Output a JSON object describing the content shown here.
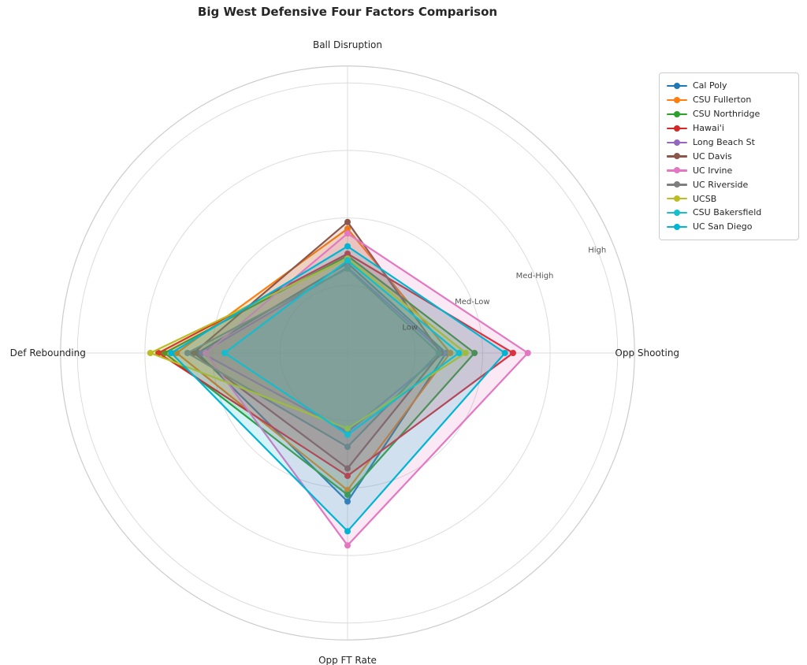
{
  "title": "Big West Defensive Four Factors Comparison",
  "chart_data": {
    "type": "radar",
    "title": "Big West Defensive Four Factors Comparison",
    "categories": [
      "Ball Disruption",
      "Opp Shooting",
      "Opp FT Rate",
      "Def Rebounding"
    ],
    "axis_angles_deg": [
      90,
      0,
      270,
      180
    ],
    "radial_ticks": [
      {
        "value": 1,
        "label": "Low"
      },
      {
        "value": 2,
        "label": "Med-Low"
      },
      {
        "value": 3,
        "label": "Med-High"
      },
      {
        "value": 4,
        "label": "High"
      }
    ],
    "r_max": 4.25,
    "tick_label_angle_deg": 22.5,
    "grid": true,
    "legend_position": "upper right",
    "series": [
      {
        "name": "Cal Poly",
        "color": "#1f77b4",
        "values": [
          1.33,
          1.46,
          2.2,
          2.22
        ]
      },
      {
        "name": "CSU Fullerton",
        "color": "#ff7f0e",
        "values": [
          1.84,
          1.52,
          2.03,
          2.53
        ]
      },
      {
        "name": "CSU Northridge",
        "color": "#2ca02c",
        "values": [
          1.44,
          1.88,
          2.1,
          2.71
        ]
      },
      {
        "name": "Hawai'i",
        "color": "#d62728",
        "values": [
          1.47,
          2.45,
          1.82,
          2.8
        ]
      },
      {
        "name": "Long Beach St",
        "color": "#9467bd",
        "values": [
          1.27,
          1.42,
          1.17,
          2.16
        ]
      },
      {
        "name": "UC Davis",
        "color": "#8c564b",
        "values": [
          1.94,
          1.38,
          1.71,
          2.28
        ]
      },
      {
        "name": "UC Irvine",
        "color": "#e377c2",
        "values": [
          1.77,
          2.67,
          2.85,
          2.1
        ]
      },
      {
        "name": "UC Riverside",
        "color": "#7f7f7f",
        "values": [
          1.25,
          1.35,
          1.39,
          2.37
        ]
      },
      {
        "name": "UCSB",
        "color": "#bcbd22",
        "values": [
          1.4,
          1.75,
          1.12,
          2.92
        ]
      },
      {
        "name": "CSU Bakersfield",
        "color": "#17becf",
        "values": [
          1.37,
          1.65,
          1.21,
          1.82
        ]
      },
      {
        "name": "UC San Diego",
        "color": "#00b5d3",
        "values": [
          1.58,
          2.33,
          2.64,
          2.61
        ]
      }
    ],
    "colors": {
      "grid": "#dcdcdc",
      "spine": "#cccccc",
      "tick_label": "#555555",
      "axis_label": "#262626",
      "title": "#262626"
    }
  }
}
